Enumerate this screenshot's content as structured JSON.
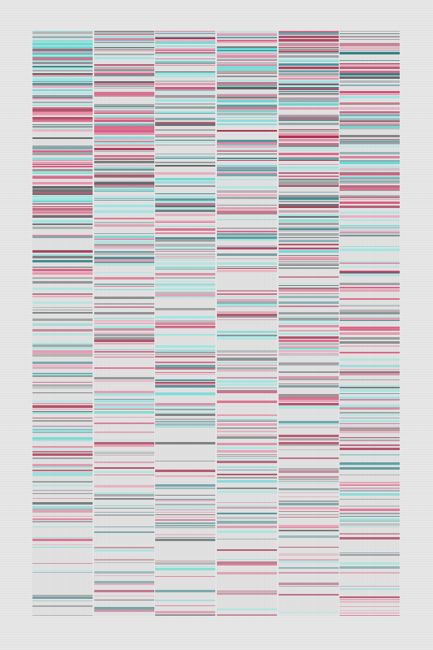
{
  "artwork": {
    "panel_count": 6,
    "palette": {
      "background": "#e6e6e6",
      "colors": [
        "#d94f78",
        "#a52a4a",
        "#58d8d2",
        "#2d7f86",
        "#555a5c",
        "#8a8f91",
        "#e889a4",
        "#8fe6e2"
      ]
    },
    "panels": [
      {
        "density": 0.93,
        "seed": 11
      },
      {
        "density": 0.86,
        "seed": 23
      },
      {
        "density": 0.8,
        "seed": 37
      },
      {
        "density": 0.88,
        "seed": 41
      },
      {
        "density": 0.9,
        "seed": 53
      },
      {
        "density": 0.84,
        "seed": 67
      }
    ]
  }
}
